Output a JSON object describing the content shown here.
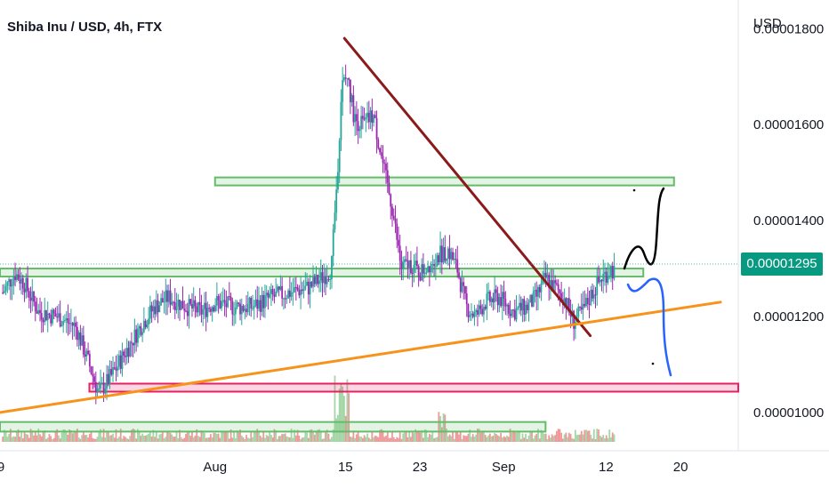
{
  "header": {
    "title": "Shiba Inu / USD, 4h, FTX"
  },
  "price_axis": {
    "unit": "USD"
  },
  "last_price": {
    "label": "0.00001295",
    "value": 1.295e-05,
    "color": "#089981"
  },
  "colors": {
    "up": "#26a69a",
    "down": "#9c27b0",
    "volume_up": "#a5d6a7",
    "volume_down": "#ef9a9a"
  },
  "chart_data": {
    "type": "candlestick",
    "y_ticks": [
      {
        "label": "0.00001800",
        "value": 1.8e-05
      },
      {
        "label": "0.00001600",
        "value": 1.6e-05
      },
      {
        "label": "0.00001400",
        "value": 1.4e-05
      },
      {
        "label": "0.00001200",
        "value": 1.2e-05
      },
      {
        "label": "0.00001000",
        "value": 1e-05
      }
    ],
    "x_ticks": [
      {
        "label": "9",
        "day": 9
      },
      {
        "label": "Aug",
        "day": 32
      },
      {
        "label": "15",
        "day": 46
      },
      {
        "label": "23",
        "day": 54
      },
      {
        "label": "Sep",
        "day": 63
      },
      {
        "label": "12",
        "day": 74
      },
      {
        "label": "20",
        "day": 82
      }
    ],
    "ylim": [
      9.2e-06,
      1.86e-05
    ],
    "xlim": [
      8.9,
      88.2
    ],
    "price_path": [
      [
        9.2,
        1.25e-05
      ],
      [
        10.5,
        1.29e-05
      ],
      [
        11.5,
        1.27e-05
      ],
      [
        13,
        1.21e-05
      ],
      [
        15,
        1.2e-05
      ],
      [
        17,
        1.18e-05
      ],
      [
        18.3,
        1.11e-05
      ],
      [
        19.5,
        1.04e-05
      ],
      [
        21,
        1.08e-05
      ],
      [
        22.5,
        1.13e-05
      ],
      [
        24,
        1.18e-05
      ],
      [
        25.5,
        1.22e-05
      ],
      [
        27,
        1.24e-05
      ],
      [
        29,
        1.22e-05
      ],
      [
        30.5,
        1.21e-05
      ],
      [
        32,
        1.23e-05
      ],
      [
        34,
        1.22e-05
      ],
      [
        36,
        1.22e-05
      ],
      [
        38,
        1.24e-05
      ],
      [
        40,
        1.25e-05
      ],
      [
        42,
        1.26e-05
      ],
      [
        43.5,
        1.28e-05
      ],
      [
        44.5,
        1.3e-05
      ],
      [
        45.2,
        1.52e-05
      ],
      [
        45.6,
        1.68e-05
      ],
      [
        46.2,
        1.7e-05
      ],
      [
        47,
        1.61e-05
      ],
      [
        48,
        1.6e-05
      ],
      [
        49,
        1.62e-05
      ],
      [
        50.2,
        1.5e-05
      ],
      [
        51,
        1.43e-05
      ],
      [
        52,
        1.3e-05
      ],
      [
        53,
        1.31e-05
      ],
      [
        54,
        1.29e-05
      ],
      [
        55.5,
        1.32e-05
      ],
      [
        57,
        1.34e-05
      ],
      [
        58,
        1.3e-05
      ],
      [
        59,
        1.22e-05
      ],
      [
        60,
        1.2e-05
      ],
      [
        61,
        1.23e-05
      ],
      [
        62.5,
        1.24e-05
      ],
      [
        64,
        1.21e-05
      ],
      [
        65.5,
        1.22e-05
      ],
      [
        66.5,
        1.24e-05
      ],
      [
        67.5,
        1.28e-05
      ],
      [
        68.5,
        1.26e-05
      ],
      [
        69.5,
        1.24e-05
      ],
      [
        70.5,
        1.19e-05
      ],
      [
        71.5,
        1.21e-05
      ],
      [
        72.5,
        1.25e-05
      ],
      [
        73.5,
        1.28e-05
      ],
      [
        74.5,
        1.3e-05
      ],
      [
        75,
        1.29e-05
      ]
    ],
    "support_zones": [
      {
        "name": "resistance-zone-high",
        "x1": 32,
        "x2": 81.3,
        "y_top": 1.49e-05,
        "y_bottom": 1.48e-05,
        "color": "#66bb6a"
      },
      {
        "name": "support-zone-mid",
        "x1": 8.9,
        "x2": 78,
        "y_top": 1.3e-05,
        "y_bottom": 1.29e-05,
        "color": "#66bb6a"
      },
      {
        "name": "demand-zone-red",
        "x1": 18.5,
        "x2": 88.2,
        "y_top": 1.06e-05,
        "y_bottom": 1.05e-05,
        "color": "#e91e63"
      },
      {
        "name": "support-zone-low",
        "x1": 8.9,
        "x2": 67.5,
        "y_top": 9.8e-06,
        "y_bottom": 9.6e-06,
        "color": "#66bb6a"
      }
    ],
    "trendlines": [
      {
        "name": "downtrend-line",
        "color": "#8b1a1a",
        "from": [
          45.9,
          1.78e-05
        ],
        "to": [
          72.3,
          1.16e-05
        ]
      },
      {
        "name": "uptrend-line",
        "color": "#f7931a",
        "from": [
          8.9,
          1e-05
        ],
        "to": [
          86.3,
          1.23e-05
        ]
      }
    ]
  }
}
